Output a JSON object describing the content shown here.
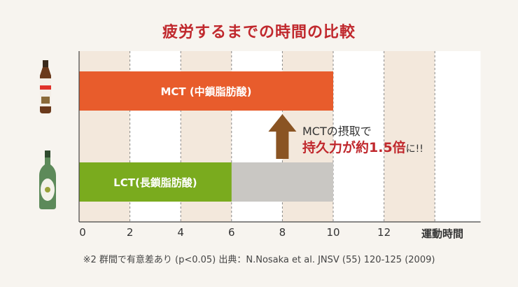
{
  "title": "疲労するまでの時間の比較",
  "chart_data": {
    "type": "bar",
    "orientation": "horizontal",
    "categories": [
      "MCT (中鎖脂肪酸)",
      "LCT(長鎖脂肪酸)"
    ],
    "values": [
      10,
      6
    ],
    "reference": {
      "category": "LCT(長鎖脂肪酸)",
      "value": 10
    },
    "xlabel": "運動時間",
    "xticks": [
      0,
      2,
      4,
      6,
      8,
      10,
      12
    ],
    "xlim": [
      0,
      15.8
    ],
    "grid": true,
    "colors": {
      "MCT": "#e85c2c",
      "LCT": "#7aab1e",
      "reference": "#c9c7c3",
      "band": "#f3e8dc",
      "arrow": "#8a5423"
    }
  },
  "annotation": {
    "line1": "MCTの摂取で",
    "line2": "持久力が約1.5倍",
    "suffix": "に!!"
  },
  "footnote": "※2 群間で有意差あり (p<0.05)  出典：N.Nosaka et al. JNSV (55) 120-125 (2009)",
  "icons": [
    "mct-oil-bottle-icon",
    "olive-oil-bottle-icon"
  ]
}
